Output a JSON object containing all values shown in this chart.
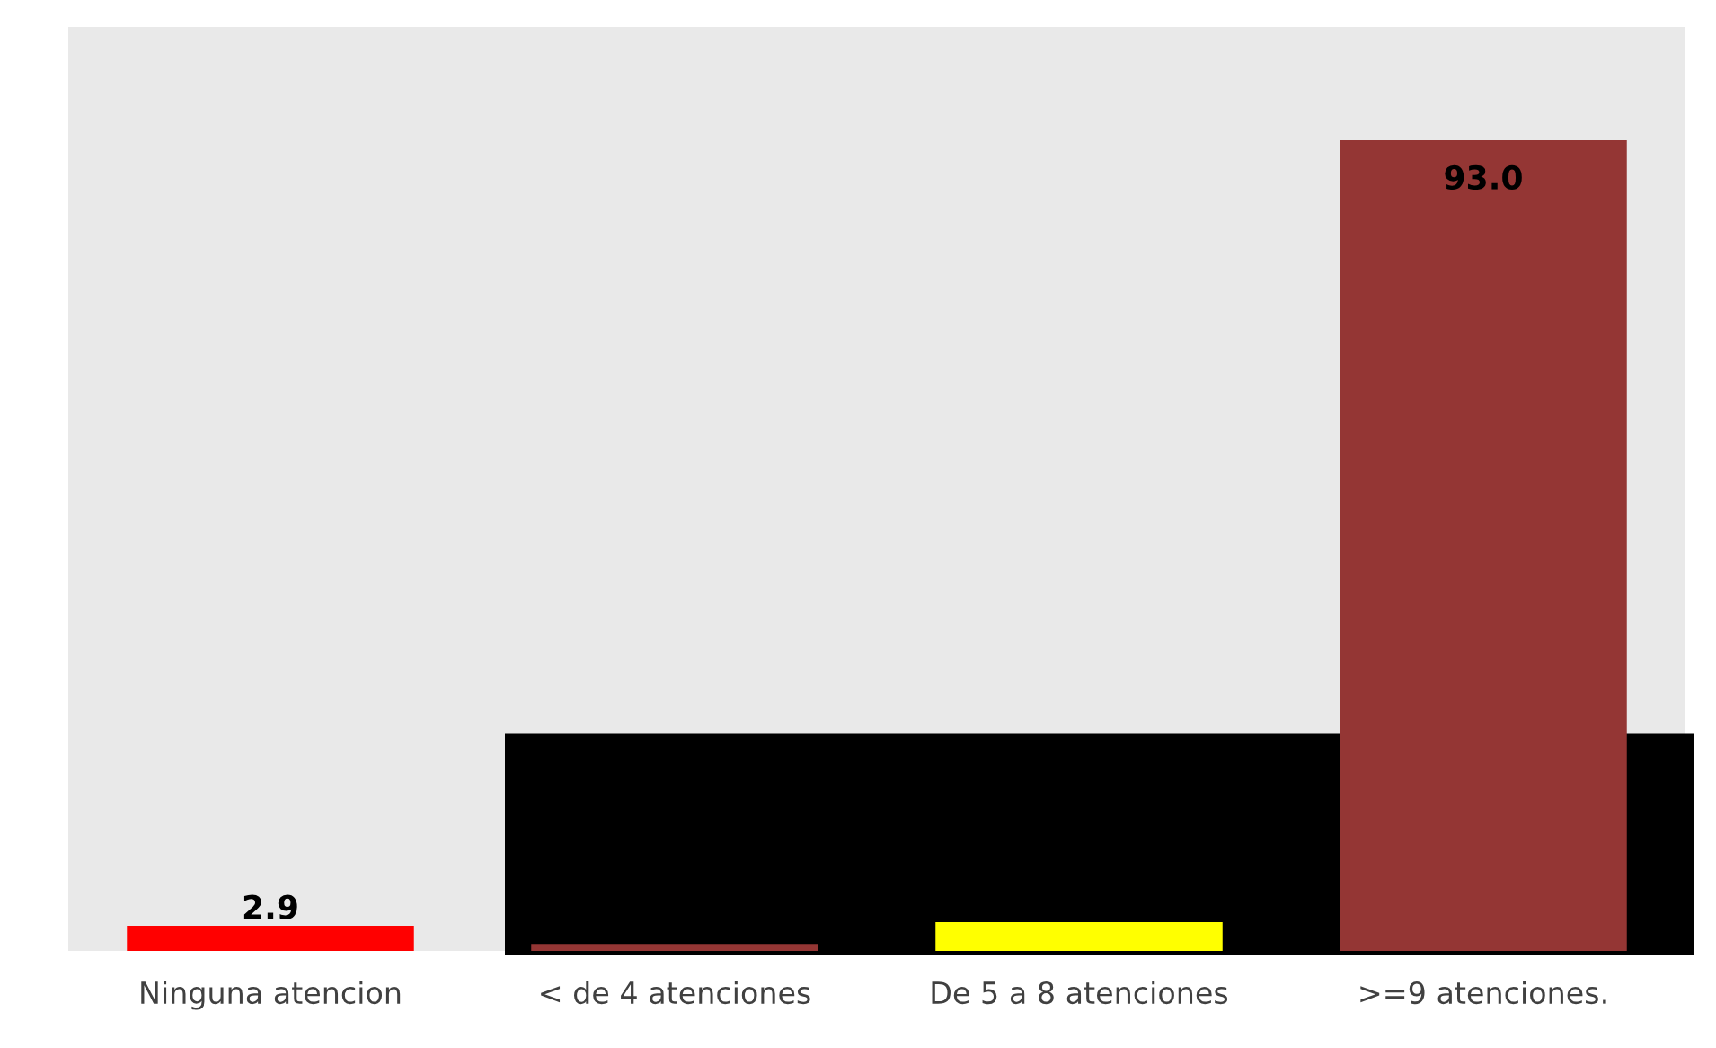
{
  "chart_data": {
    "type": "bar",
    "categories": [
      "Ninguna atencion",
      "< de 4 atenciones",
      "De 5 a 8 atenciones",
      ">=9 atenciones."
    ],
    "values": [
      2.9,
      0.8,
      3.3,
      93.0
    ],
    "colors": [
      "#ff0000",
      "#943634",
      "#ffff00",
      "#943634"
    ],
    "value_labels": [
      "2.9",
      null,
      null,
      "93.0"
    ],
    "ylim": [
      0,
      106
    ],
    "tick_labels": "x",
    "grid": false,
    "legend": false
  }
}
